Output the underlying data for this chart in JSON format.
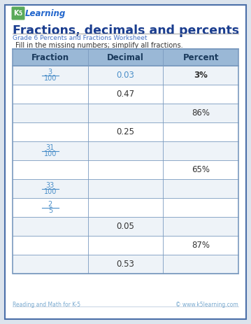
{
  "title": "Fractions, decimals and percents",
  "subtitle": "Grade 6 Percents and Fractions Worksheet",
  "instruction": "Fill in the missing numbers; simplify all fractions.",
  "headers": [
    "Fraction",
    "Decimal",
    "Percent"
  ],
  "rows": [
    {
      "fraction": [
        "3",
        "100"
      ],
      "decimal": "0.03",
      "decimal_color": "#4b8fc9",
      "percent": "3%",
      "percent_bold": true
    },
    {
      "fraction": null,
      "decimal": "0.47",
      "decimal_color": "#333333",
      "percent": null
    },
    {
      "fraction": null,
      "decimal": null,
      "decimal_color": "#333333",
      "percent": "86%"
    },
    {
      "fraction": null,
      "decimal": "0.25",
      "decimal_color": "#333333",
      "percent": null
    },
    {
      "fraction": [
        "31",
        "100"
      ],
      "decimal": null,
      "decimal_color": "#333333",
      "percent": null
    },
    {
      "fraction": null,
      "decimal": null,
      "decimal_color": "#333333",
      "percent": "65%"
    },
    {
      "fraction": [
        "33",
        "100"
      ],
      "decimal": null,
      "decimal_color": "#333333",
      "percent": null
    },
    {
      "fraction": [
        "2",
        "5"
      ],
      "decimal": null,
      "decimal_color": "#333333",
      "percent": null
    },
    {
      "fraction": null,
      "decimal": "0.05",
      "decimal_color": "#333333",
      "percent": null
    },
    {
      "fraction": null,
      "decimal": null,
      "decimal_color": "#333333",
      "percent": "87%"
    },
    {
      "fraction": null,
      "decimal": "0.53",
      "decimal_color": "#333333",
      "percent": null
    }
  ],
  "header_bg": "#9ab8d6",
  "header_text": "#1a3a5c",
  "border_color": "#7a9abf",
  "page_bg": "#dce4ed",
  "content_bg": "#ffffff",
  "title_color": "#1a3d8f",
  "subtitle_color": "#4472c4",
  "fraction_color": "#4b8fc9",
  "footer_left": "Reading and Math for K-5",
  "footer_right": "© www.k5learning.com",
  "footer_color": "#7aaad0",
  "logo_text1": "K",
  "logo_text2": "5",
  "logo_text3": "Learning"
}
